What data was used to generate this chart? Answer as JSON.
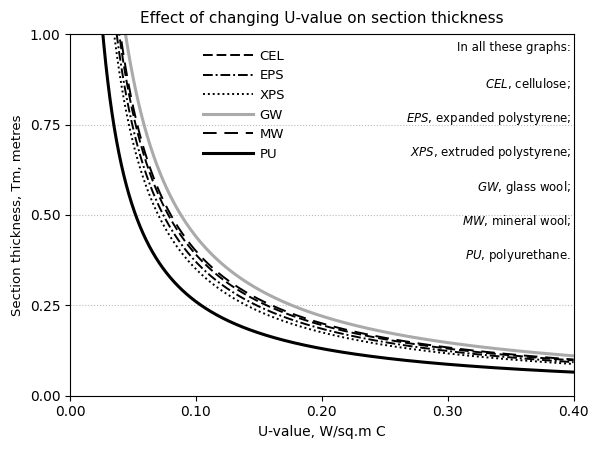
{
  "title": "Effect of changing U-value on section thickness",
  "xlabel": "U-value, W/sq.m C",
  "ylabel": "Section thickness, Tm, metres",
  "xlim": [
    0.0,
    0.4
  ],
  "ylim": [
    0.0,
    1.0
  ],
  "xticks": [
    0.0,
    0.1,
    0.2,
    0.3,
    0.4
  ],
  "yticks": [
    0.0,
    0.25,
    0.5,
    0.75,
    1.0
  ],
  "materials": [
    {
      "label": "CEL",
      "k": 0.039,
      "color": "#000000",
      "lw": 1.4,
      "dashes": [
        5,
        2
      ]
    },
    {
      "label": "EPS",
      "k": 0.037,
      "color": "#000000",
      "lw": 1.4,
      "dashes": [
        5,
        1.5,
        1,
        1.5
      ]
    },
    {
      "label": "XPS",
      "k": 0.035,
      "color": "#000000",
      "lw": 1.4,
      "dashes": [
        1,
        1.5
      ]
    },
    {
      "label": "GW",
      "k": 0.044,
      "color": "#aaaaaa",
      "lw": 2.2,
      "dashes": []
    },
    {
      "label": "MW",
      "k": 0.04,
      "color": "#000000",
      "lw": 1.4,
      "dashes": [
        7,
        4
      ]
    },
    {
      "label": "PU",
      "k": 0.026,
      "color": "#000000",
      "lw": 2.2,
      "dashes": []
    }
  ],
  "u_min": 0.022,
  "u_max": 0.4,
  "grid_color": "#bbbbbb",
  "grid_yticks": [
    0.25,
    0.5,
    0.75,
    1.0
  ]
}
